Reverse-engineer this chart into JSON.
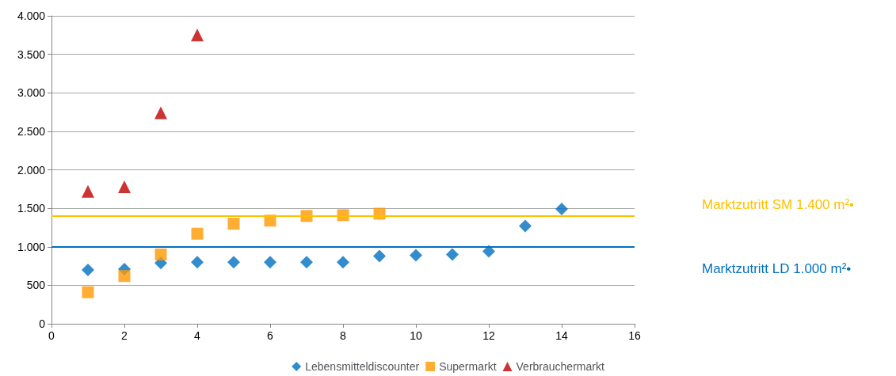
{
  "chart_data": {
    "type": "scatter",
    "x": [
      1,
      2,
      3,
      4,
      5,
      6,
      7,
      8,
      9,
      10,
      11,
      12,
      13,
      14
    ],
    "series": [
      {
        "name": "Lebensmitteldiscounter",
        "color": "#0070c0",
        "marker": "diamond",
        "values": [
          700,
          710,
          790,
          800,
          800,
          800,
          800,
          800,
          880,
          890,
          900,
          940,
          1270,
          1490
        ]
      },
      {
        "name": "Supermarkt",
        "color": "#ff9900",
        "marker": "square",
        "x": [
          1,
          2,
          3,
          4,
          5,
          6,
          7,
          8,
          9
        ],
        "values": [
          410,
          620,
          900,
          1170,
          1300,
          1340,
          1400,
          1410,
          1430
        ]
      },
      {
        "name": "Verbrauchermarkt",
        "color": "#c00000",
        "marker": "triangle",
        "x": [
          1,
          2,
          3,
          4
        ],
        "values": [
          1720,
          1780,
          2740,
          3750
        ]
      }
    ],
    "xlim": [
      0,
      16
    ],
    "xticks": [
      0,
      2,
      4,
      6,
      8,
      10,
      12,
      14,
      16
    ],
    "ylim": [
      0,
      4000
    ],
    "yticks": [
      0,
      500,
      {
        "value": 1000,
        "label": "1.000"
      },
      {
        "value": 1500,
        "label": "1.500"
      },
      {
        "value": 2000,
        "label": "2.000"
      },
      {
        "value": 2500,
        "label": "2.500"
      },
      {
        "value": 3000,
        "label": "3.000"
      },
      {
        "value": 3500,
        "label": "3.500"
      },
      {
        "value": 4000,
        "label": "4.000"
      }
    ],
    "grid": "y",
    "legend": "bottom",
    "ref_lines": [
      {
        "axis": "y",
        "value": 1400,
        "label": "Marktzutritt SM 1.400 m²•",
        "color": "#ffc000"
      },
      {
        "axis": "y",
        "value": 1000,
        "label": "Marktzutritt LD 1.000 m²•",
        "color": "#0070c0"
      }
    ]
  }
}
